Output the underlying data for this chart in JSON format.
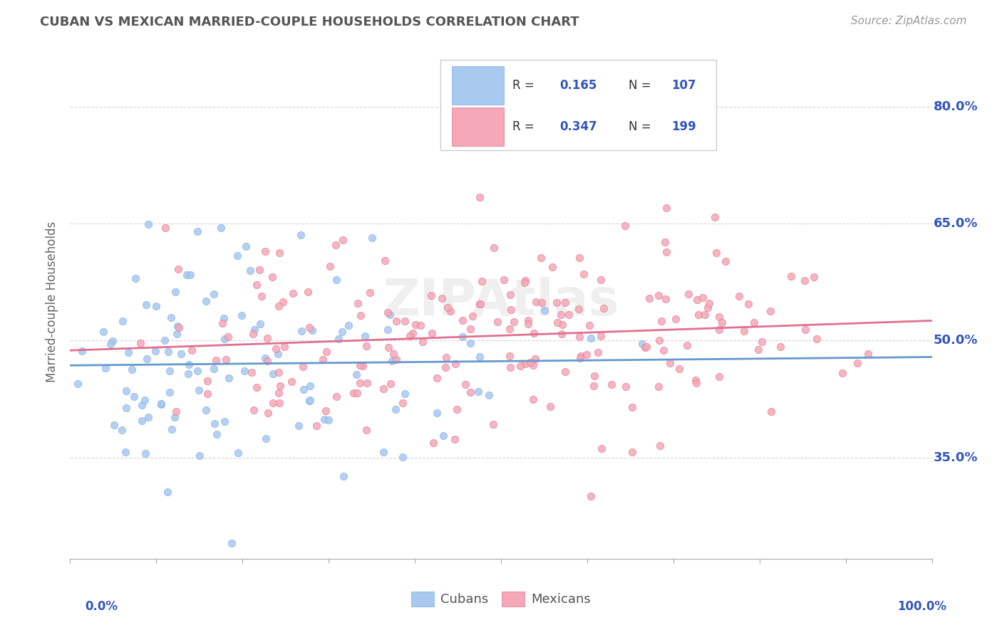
{
  "title": "CUBAN VS MEXICAN MARRIED-COUPLE HOUSEHOLDS CORRELATION CHART",
  "source": "Source: ZipAtlas.com",
  "ylabel": "Married-couple Households",
  "yticks": [
    0.35,
    0.5,
    0.65,
    0.8
  ],
  "ytick_labels": [
    "35.0%",
    "50.0%",
    "65.0%",
    "80.0%"
  ],
  "xlim": [
    0.0,
    1.0
  ],
  "ylim": [
    0.22,
    0.88
  ],
  "cubans_R": 0.165,
  "cubans_N": 107,
  "mexicans_R": 0.347,
  "mexicans_N": 199,
  "cuban_color": "#A8C8F0",
  "cuban_edge": "#7AAEE0",
  "cuban_line": "#6699CC",
  "mexican_color": "#F4A8B8",
  "mexican_edge": "#E07090",
  "mexican_line": "#E07090",
  "scatter_alpha": 0.85,
  "marker_size": 55,
  "background_color": "#FFFFFF",
  "grid_color": "#CCCCCC",
  "tick_label_color": "#3355BB",
  "title_color": "#555555",
  "source_color": "#999999",
  "watermark_text": "ZIPAtlas"
}
